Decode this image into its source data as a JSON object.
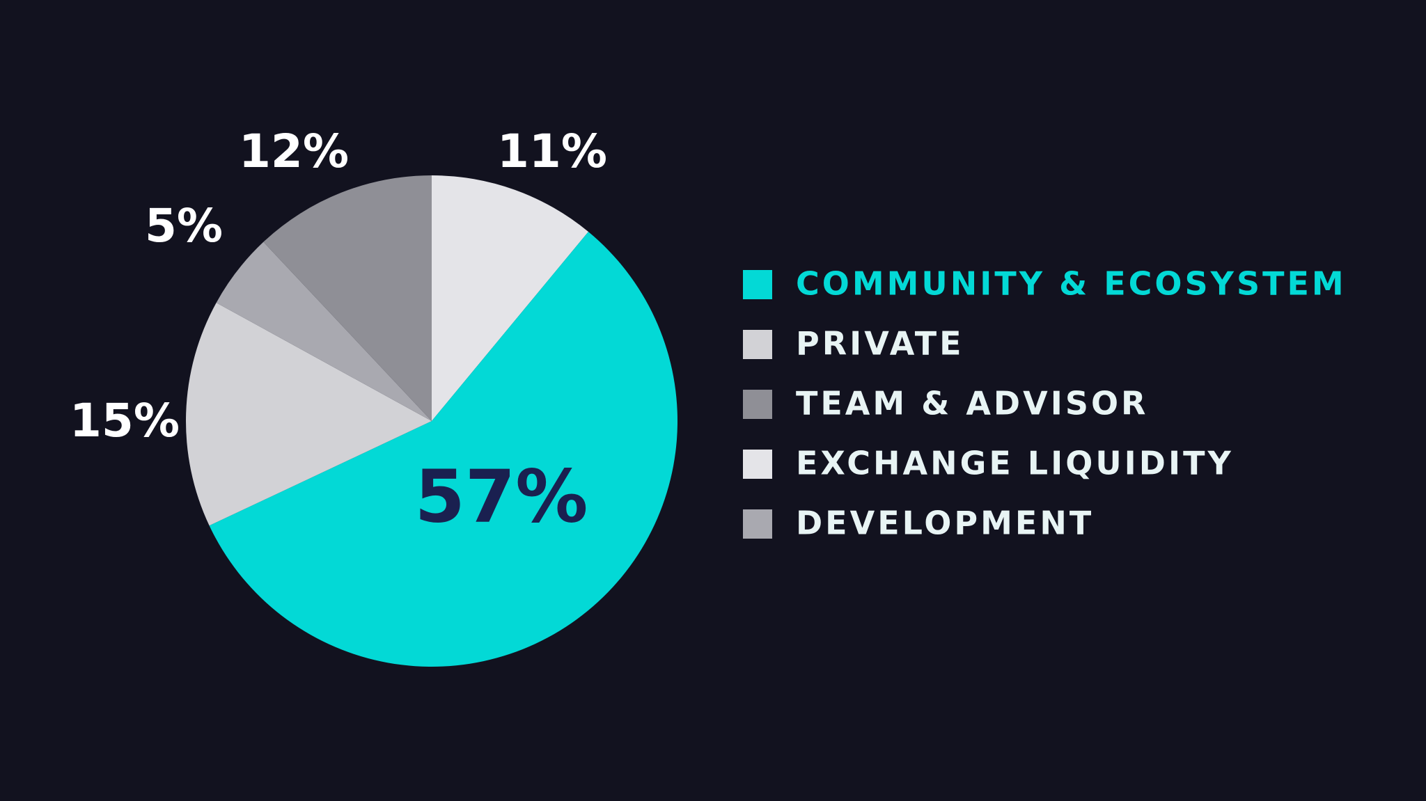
{
  "chart_data": {
    "type": "pie",
    "categories": [
      "EXCHANGE LIQUIDITY",
      "COMMUNITY & ECOSYSTEM",
      "PRIVATE",
      "DEVELOPMENT",
      "TEAM & ADVISOR"
    ],
    "values": [
      11,
      57,
      15,
      5,
      12
    ],
    "value_labels": [
      "11%",
      "57%",
      "15%",
      "5%",
      "12%"
    ],
    "colors": [
      "#e4e4e8",
      "#03d9d6",
      "#d2d2d6",
      "#a9a9b0",
      "#8f8f96"
    ],
    "legend_order": [
      1,
      2,
      4,
      0,
      3
    ],
    "legend": "right"
  }
}
